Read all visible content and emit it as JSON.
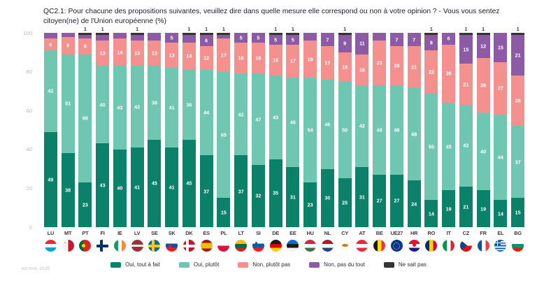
{
  "title": "QC2.1: Pour chacune des propositions suivantes, veuillez dire dans quelle mesure elle correspond ou non à votre opinion ? - Vous vous sentez citoyen(ne) de l'Union européenne (%)",
  "footer_note": "oct./nov. 2025",
  "y_axis": {
    "ticks": [
      0,
      20,
      40,
      60,
      80,
      100
    ],
    "tick_color": "#cbb5ae"
  },
  "x_axis": {
    "labels": [
      "LU",
      "MT",
      "PT",
      "FI",
      "IE",
      "LV",
      "SE",
      "SK",
      "DK",
      "ES",
      "PL",
      "LT",
      "SI",
      "DE",
      "EE",
      "HU",
      "NL",
      "CY",
      "AT",
      "BE",
      "UE27",
      "HR",
      "RO",
      "IT",
      "CZ",
      "FR",
      "EL",
      "BG"
    ],
    "flag_icons": [
      "flag-lu-icon",
      "flag-mt-icon",
      "flag-pt-icon",
      "flag-fi-icon",
      "flag-ie-icon",
      "flag-lv-icon",
      "flag-se-icon",
      "flag-sk-icon",
      "flag-dk-icon",
      "flag-es-icon",
      "flag-pl-icon",
      "flag-lt-icon",
      "flag-si-icon",
      "flag-de-icon",
      "flag-ee-icon",
      "flag-hu-icon",
      "flag-nl-icon",
      "flag-cy-icon",
      "flag-at-icon",
      "flag-be-icon",
      "flag-eu-icon",
      "flag-hr-icon",
      "flag-ro-icon",
      "flag-it-icon",
      "flag-cz-icon",
      "flag-fr-icon",
      "flag-el-icon",
      "flag-bg-icon"
    ]
  },
  "legend": [
    {
      "label": "Oui, tout à fait",
      "color": "#0a8168"
    },
    {
      "label": "Oui, plutôt",
      "color": "#6fc7b2"
    },
    {
      "label": "Non, plutôt pas",
      "color": "#f4918e"
    },
    {
      "label": "Non, pas du tout",
      "color": "#8d5ba6"
    },
    {
      "label": "Ne sait pas",
      "color": "#333333"
    }
  ],
  "chart_data": {
    "type": "bar",
    "stacked": true,
    "title": "QC2.1: Vous vous sentez citoyen(ne) de l'Union européenne (%)",
    "xlabel": "",
    "ylabel": "",
    "ylim": [
      0,
      100
    ],
    "grid": false,
    "legend_position": "bottom",
    "value_label_min": 5,
    "dk_label_position": "above-bar",
    "categories": [
      "LU",
      "MT",
      "PT",
      "FI",
      "IE",
      "LV",
      "SE",
      "SK",
      "DK",
      "ES",
      "PL",
      "LT",
      "SI",
      "DE",
      "EE",
      "HU",
      "NL",
      "CY",
      "AT",
      "BE",
      "UE27",
      "HR",
      "RO",
      "IT",
      "CZ",
      "FR",
      "EL",
      "BG"
    ],
    "series": [
      {
        "name": "Oui, tout à fait",
        "color": "#0a8168",
        "values": [
          49,
          38,
          23,
          43,
          40,
          41,
          45,
          41,
          45,
          37,
          15,
          37,
          32,
          35,
          31,
          23,
          30,
          25,
          31,
          27,
          27,
          24,
          14,
          19,
          21,
          19,
          14,
          15
        ]
      },
      {
        "name": "Oui, plutôt",
        "color": "#6fc7b2",
        "values": [
          42,
          51,
          66,
          40,
          43,
          42,
          38,
          41,
          36,
          44,
          65,
          42,
          47,
          43,
          46,
          54,
          46,
          50,
          42,
          46,
          46,
          48,
          55,
          45,
          42,
          40,
          44,
          37
        ]
      },
      {
        "name": "Non, plutôt pas",
        "color": "#f4918e",
        "values": [
          6,
          9,
          8,
          13,
          14,
          13,
          13,
          13,
          14,
          12,
          17,
          16,
          16,
          16,
          17,
          19,
          17,
          15,
          16,
          23,
          20,
          21,
          22,
          30,
          21,
          28,
          27,
          26
        ]
      },
      {
        "name": "Non, pas du tout",
        "color": "#8d5ba6",
        "values": [
          3,
          2,
          2,
          3,
          3,
          3,
          4,
          5,
          4,
          6,
          2,
          5,
          5,
          5,
          5,
          4,
          7,
          9,
          11,
          4,
          7,
          7,
          8,
          6,
          15,
          12,
          15,
          21
        ]
      },
      {
        "name": "Ne sait pas",
        "color": "#333333",
        "values": [
          0,
          0,
          1,
          1,
          0,
          1,
          0,
          0,
          1,
          1,
          1,
          0,
          0,
          1,
          1,
          0,
          0,
          1,
          0,
          0,
          0,
          0,
          1,
          0,
          1,
          1,
          0,
          1
        ]
      }
    ]
  }
}
